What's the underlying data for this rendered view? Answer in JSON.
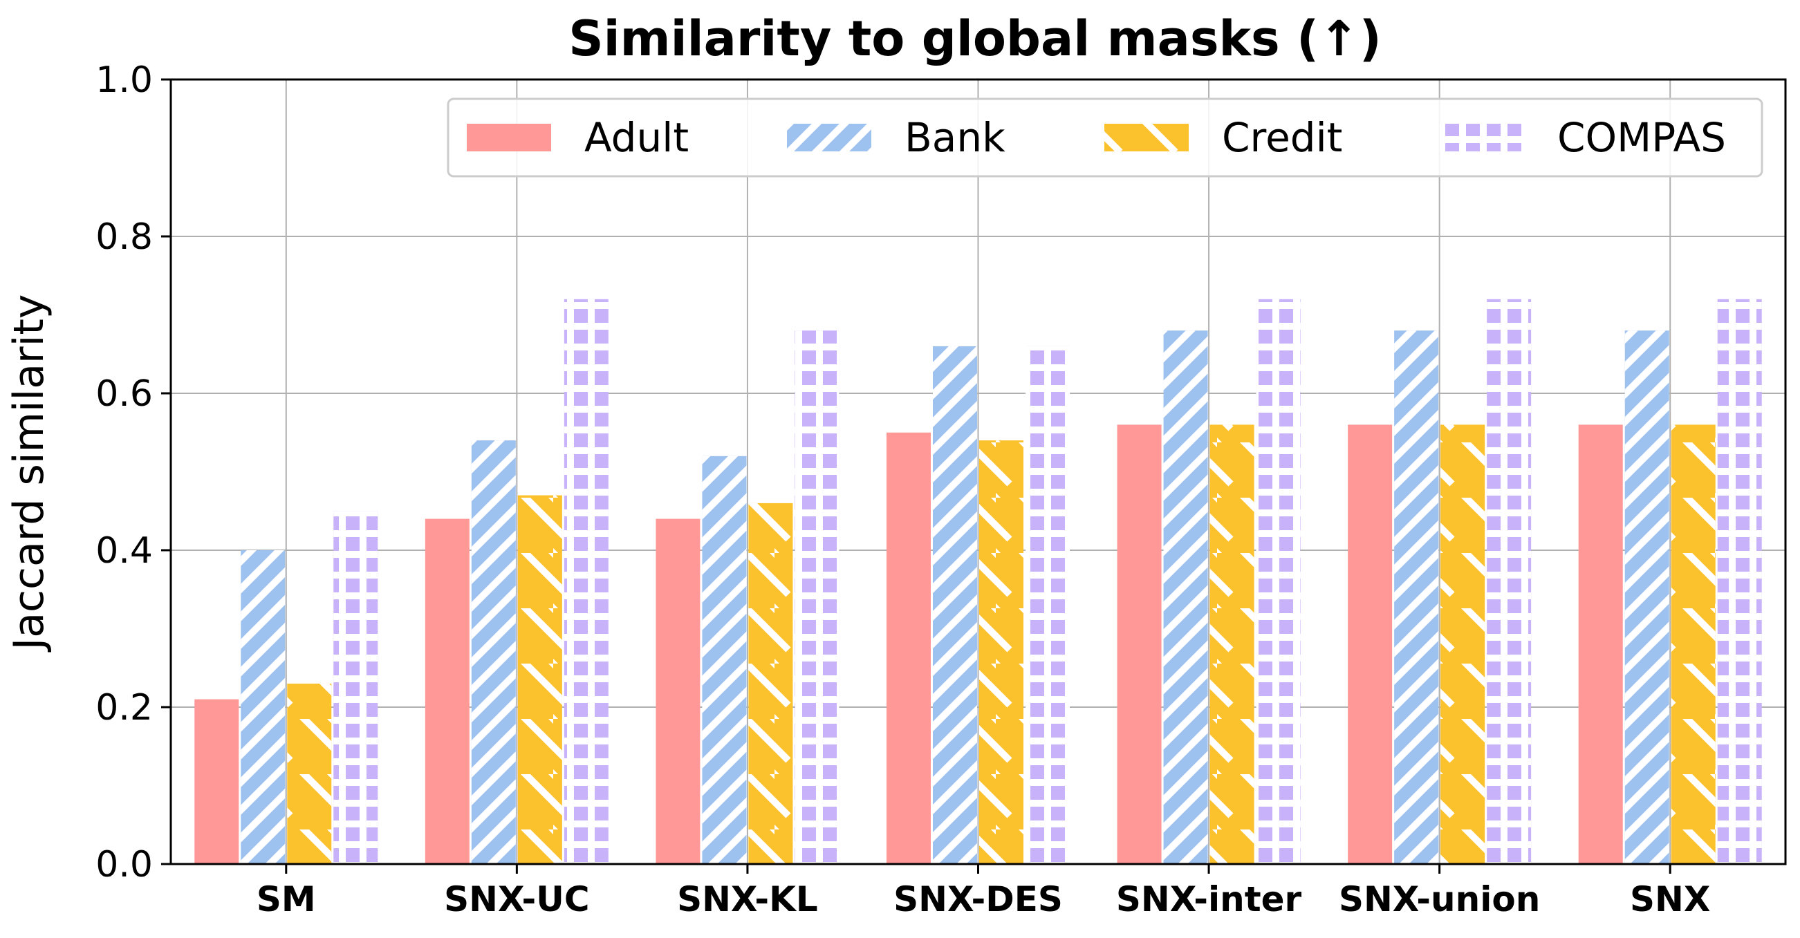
{
  "chart_data": {
    "type": "bar",
    "title": "Similarity to global masks (↑)",
    "xlabel": "",
    "ylabel": "Jaccard similarity",
    "ylim": [
      0.0,
      1.0
    ],
    "yticks": [
      "0.0",
      "0.2",
      "0.4",
      "0.6",
      "0.8",
      "1.0"
    ],
    "grid": true,
    "legend_position": "top-right",
    "categories": [
      "SM",
      "SNX-UC",
      "SNX-KL",
      "SNX-DES",
      "SNX-inter",
      "SNX-union",
      "SNX"
    ],
    "series": [
      {
        "name": "Adult",
        "color": "#ff9896",
        "hatch": "none",
        "values": [
          0.21,
          0.44,
          0.44,
          0.55,
          0.56,
          0.56,
          0.56
        ]
      },
      {
        "name": "Bank",
        "color": "#9ec2f0",
        "hatch": "diagonal",
        "values": [
          0.4,
          0.54,
          0.52,
          0.66,
          0.68,
          0.68,
          0.68
        ]
      },
      {
        "name": "Credit",
        "color": "#fcc22d",
        "hatch": "back-diagonal",
        "values": [
          0.23,
          0.47,
          0.46,
          0.54,
          0.56,
          0.56,
          0.56
        ]
      },
      {
        "name": "COMPAS",
        "color": "#c8b3fb",
        "hatch": "grid",
        "values": [
          0.45,
          0.72,
          0.68,
          0.66,
          0.72,
          0.72,
          0.72
        ]
      }
    ]
  }
}
